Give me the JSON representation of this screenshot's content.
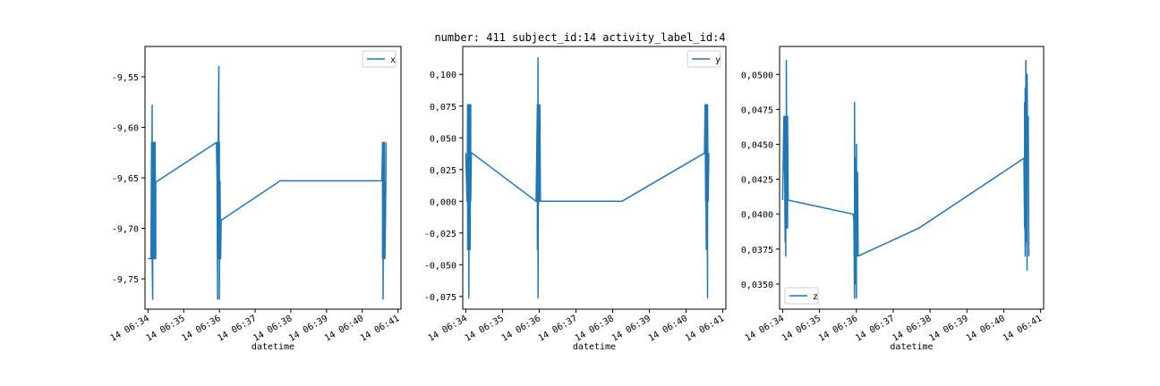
{
  "figure_title": "number: 411 subject_id:14 activity_label_id:4",
  "colors": {
    "line": "#1f77b4",
    "axes": "#000000",
    "background": "#ffffff"
  },
  "x_ticks": [
    "14 06:34",
    "14 06:35",
    "14 06:36",
    "14 06:37",
    "14 06:38",
    "14 06:39",
    "14 06:40",
    "14 06:41"
  ],
  "chart_data": [
    {
      "type": "line",
      "xlabel": "datetime",
      "ylabel": "",
      "xlim": [
        "06:33:55",
        "06:41:05"
      ],
      "ylim": [
        -9.78,
        -9.52
      ],
      "yticks": [
        -9.55,
        -9.6,
        -9.65,
        -9.7,
        -9.75
      ],
      "ytick_labels": [
        "-9,55",
        "-9,60",
        "-9,65",
        "-9,70",
        "-9,75"
      ],
      "legend": "top-right",
      "series": [
        {
          "name": "x",
          "x": [
            "06:34:00",
            "06:34:05",
            "06:34:06",
            "06:34:06",
            "06:34:07",
            "06:34:07",
            "06:34:08",
            "06:34:08",
            "06:34:09",
            "06:34:09",
            "06:34:10",
            "06:34:10",
            "06:34:11",
            "06:34:11",
            "06:34:12",
            "06:34:12",
            "06:34:13",
            "06:34:13",
            "06:34:14",
            "06:35:55",
            "06:35:56",
            "06:35:57",
            "06:35:57",
            "06:35:58",
            "06:35:58",
            "06:35:59",
            "06:35:59",
            "06:36:00",
            "06:36:00",
            "06:36:01",
            "06:36:02",
            "06:36:03",
            "06:37:42",
            "06:40:33",
            "06:40:34",
            "06:40:34",
            "06:40:35",
            "06:40:35",
            "06:40:36",
            "06:40:36",
            "06:40:37",
            "06:40:37",
            "06:40:38",
            "06:40:38",
            "06:40:39",
            "06:40:40"
          ],
          "y": [
            -9.73,
            -9.73,
            -9.615,
            -9.73,
            -9.578,
            -9.73,
            -9.77,
            -9.615,
            -9.73,
            -9.615,
            -9.73,
            -9.615,
            -9.73,
            -9.615,
            -9.73,
            -9.615,
            -9.73,
            -9.654,
            -9.654,
            -9.615,
            -9.65,
            -9.77,
            -9.615,
            -9.73,
            -9.615,
            -9.54,
            -9.73,
            -9.615,
            -9.77,
            -9.653,
            -9.73,
            -9.692,
            -9.653,
            -9.653,
            -9.615,
            -9.73,
            -9.615,
            -9.77,
            -9.615,
            -9.73,
            -9.615,
            -9.73,
            -9.654,
            -9.73,
            -9.692,
            -9.615
          ]
        }
      ]
    },
    {
      "type": "line",
      "xlabel": "datetime",
      "ylabel": "",
      "xlim": [
        "06:33:55",
        "06:41:05"
      ],
      "ylim": [
        -0.085,
        0.122
      ],
      "yticks": [
        0.1,
        0.075,
        0.05,
        0.025,
        0.0,
        -0.025,
        -0.05,
        -0.075
      ],
      "ytick_labels": [
        "0,100",
        "0,075",
        "0,050",
        "0,025",
        "0,000",
        "-0,025",
        "-0,050",
        "-0,075"
      ],
      "legend": "top-right",
      "series": [
        {
          "name": "y",
          "x": [
            "06:34:00",
            "06:34:02",
            "06:34:03",
            "06:34:03",
            "06:34:04",
            "06:34:04",
            "06:34:05",
            "06:34:05",
            "06:34:06",
            "06:34:06",
            "06:34:07",
            "06:34:07",
            "06:34:08",
            "06:34:08",
            "06:34:09",
            "06:34:10",
            "06:35:55",
            "06:35:56",
            "06:35:57",
            "06:35:57",
            "06:35:58",
            "06:35:58",
            "06:35:59",
            "06:35:59",
            "06:36:00",
            "06:36:00",
            "06:36:01",
            "06:36:02",
            "06:38:15",
            "06:40:30",
            "06:40:31",
            "06:40:32",
            "06:40:32",
            "06:40:33",
            "06:40:33",
            "06:40:34",
            "06:40:34",
            "06:40:35",
            "06:40:35",
            "06:40:36",
            "06:40:37"
          ],
          "y": [
            0.038,
            0.0,
            0.076,
            -0.038,
            0.076,
            -0.038,
            0.076,
            -0.076,
            0.076,
            0.0,
            0.076,
            -0.038,
            0.076,
            0.0,
            0.038,
            0.038,
            0.0,
            0.038,
            0.076,
            -0.038,
            0.113,
            -0.076,
            0.076,
            0.0,
            0.076,
            0.0,
            0.076,
            0.0,
            0.0,
            0.038,
            0.076,
            0.0,
            0.076,
            -0.038,
            0.076,
            0.0,
            0.076,
            -0.076,
            0.076,
            0.0,
            0.038
          ]
        }
      ]
    },
    {
      "type": "line",
      "xlabel": "datetime",
      "ylabel": "",
      "xlim": [
        "06:33:55",
        "06:41:05"
      ],
      "ylim": [
        0.0332,
        0.052
      ],
      "yticks": [
        0.05,
        0.0475,
        0.045,
        0.0425,
        0.04,
        0.0375,
        0.035
      ],
      "ytick_labels": [
        "0,0500",
        "0,0475",
        "0,0450",
        "0,0425",
        "0,0400",
        "0,0375",
        "0,0350"
      ],
      "legend": "bottom-left",
      "series": [
        {
          "name": "z",
          "x": [
            "06:34:00",
            "06:34:02",
            "06:34:03",
            "06:34:03",
            "06:34:04",
            "06:34:04",
            "06:34:05",
            "06:34:05",
            "06:34:06",
            "06:34:06",
            "06:34:07",
            "06:34:07",
            "06:34:08",
            "06:34:08",
            "06:34:09",
            "06:35:55",
            "06:35:56",
            "06:35:57",
            "06:35:57",
            "06:35:58",
            "06:35:58",
            "06:35:59",
            "06:35:59",
            "06:36:00",
            "06:36:00",
            "06:36:01",
            "06:36:02",
            "06:36:03",
            "06:37:42",
            "06:40:33",
            "06:40:34",
            "06:40:34",
            "06:40:35",
            "06:40:35",
            "06:40:36",
            "06:40:36",
            "06:40:37",
            "06:40:37",
            "06:40:38",
            "06:40:38",
            "06:40:39",
            "06:40:40",
            "06:40:41"
          ],
          "y": [
            0.041,
            0.047,
            0.043,
            0.045,
            0.038,
            0.047,
            0.037,
            0.046,
            0.039,
            0.051,
            0.041,
            0.044,
            0.039,
            0.047,
            0.041,
            0.04,
            0.0395,
            0.034,
            0.048,
            0.035,
            0.044,
            0.036,
            0.043,
            0.034,
            0.045,
            0.037,
            0.043,
            0.037,
            0.039,
            0.044,
            0.039,
            0.048,
            0.037,
            0.049,
            0.041,
            0.051,
            0.038,
            0.047,
            0.036,
            0.05,
            0.044,
            0.047,
            0.037
          ]
        }
      ]
    }
  ]
}
